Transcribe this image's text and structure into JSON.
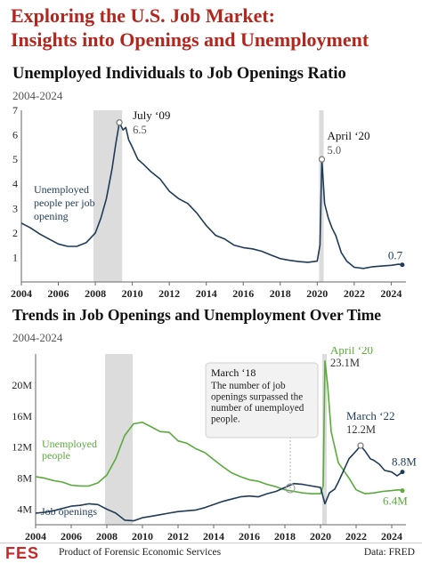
{
  "header": {
    "title_line1": "Exploring the U.S. Job Market:",
    "title_line2": "Insights into Openings and Unemployment"
  },
  "footer": {
    "logo_text": "FES",
    "org_text": "Product of Forensic Economic Services",
    "source_text": "Data: FRED"
  },
  "colors": {
    "title_red": "#b3261e",
    "navy": "#1f3b57",
    "green": "#5aaa3c",
    "recession_gray": "#dcdcdc"
  },
  "chart_data": [
    {
      "type": "line",
      "title": "Unemployed Individuals to Job Openings Ratio",
      "subtitle": "2004-2024",
      "xlim": [
        2004,
        2024.8
      ],
      "ylim": [
        0,
        7
      ],
      "xticks": [
        2004,
        2006,
        2008,
        2010,
        2012,
        2014,
        2016,
        2018,
        2020,
        2022,
        2024
      ],
      "yticks": [
        1,
        2,
        3,
        4,
        5,
        6,
        7
      ],
      "recession_bands": [
        [
          2007.9,
          2009.45
        ],
        [
          2020.1,
          2020.35
        ]
      ],
      "series": [
        {
          "name": "Unemployed people per job opening",
          "color": "#1f3b57",
          "x": [
            2004.0,
            2004.5,
            2005.0,
            2005.5,
            2006.0,
            2006.5,
            2007.0,
            2007.5,
            2008.0,
            2008.3,
            2008.6,
            2008.9,
            2009.1,
            2009.3,
            2009.5,
            2009.65,
            2009.8,
            2010.0,
            2010.3,
            2010.6,
            2011.0,
            2011.5,
            2012.0,
            2012.5,
            2013.0,
            2013.5,
            2014.0,
            2014.5,
            2015.0,
            2015.5,
            2016.0,
            2016.5,
            2017.0,
            2017.5,
            2018.0,
            2018.5,
            2019.0,
            2019.5,
            2020.0,
            2020.15,
            2020.25,
            2020.4,
            2020.6,
            2020.8,
            2021.0,
            2021.3,
            2021.6,
            2022.0,
            2022.5,
            2023.0,
            2023.5,
            2024.0,
            2024.4,
            2024.6
          ],
          "y": [
            2.4,
            2.2,
            1.95,
            1.75,
            1.55,
            1.45,
            1.45,
            1.6,
            2.0,
            2.6,
            3.4,
            4.6,
            5.6,
            6.5,
            6.2,
            6.3,
            5.8,
            5.5,
            5.0,
            4.8,
            4.5,
            4.2,
            3.7,
            3.4,
            3.2,
            2.8,
            2.3,
            1.9,
            1.75,
            1.5,
            1.4,
            1.35,
            1.25,
            1.1,
            0.95,
            0.88,
            0.83,
            0.8,
            0.85,
            1.5,
            5.0,
            3.2,
            2.6,
            2.2,
            1.9,
            1.2,
            0.85,
            0.6,
            0.55,
            0.62,
            0.65,
            0.68,
            0.72,
            0.7
          ]
        }
      ],
      "annotations": [
        {
          "label": "July ‘09",
          "value": "6.5",
          "x": 2009.3,
          "y": 6.5
        },
        {
          "label": "April ‘20",
          "value": "5.0",
          "x": 2020.25,
          "y": 5.0
        },
        {
          "label": "",
          "value": "0.7",
          "x": 2024.6,
          "y": 0.7
        }
      ],
      "series_label_lines": [
        "Unemployed",
        "people per job",
        "opening"
      ]
    },
    {
      "type": "line",
      "title": "Trends in Job Openings and Unemployment Over Time",
      "subtitle": "2004-2024",
      "xlim": [
        2004,
        2024.8
      ],
      "ylim": [
        2,
        24
      ],
      "xticks": [
        2004,
        2006,
        2008,
        2010,
        2012,
        2014,
        2016,
        2018,
        2020,
        2022,
        2024
      ],
      "yticks": [
        4,
        8,
        12,
        16,
        20
      ],
      "ytick_labels": [
        "4M",
        "8M",
        "12M",
        "16M",
        "20M"
      ],
      "recession_bands": [
        [
          2007.9,
          2009.45
        ],
        [
          2020.1,
          2020.35
        ]
      ],
      "series": [
        {
          "name": "Unemployed people",
          "color": "#5aaa3c",
          "x": [
            2004.0,
            2004.5,
            2005.0,
            2005.5,
            2006.0,
            2006.5,
            2007.0,
            2007.5,
            2008.0,
            2008.5,
            2009.0,
            2009.5,
            2010.0,
            2010.5,
            2011.0,
            2011.5,
            2012.0,
            2012.5,
            2013.0,
            2013.5,
            2014.0,
            2014.5,
            2015.0,
            2015.5,
            2016.0,
            2016.5,
            2017.0,
            2017.5,
            2018.0,
            2018.5,
            2019.0,
            2019.5,
            2020.0,
            2020.15,
            2020.25,
            2020.4,
            2020.6,
            2020.8,
            2021.0,
            2021.3,
            2021.6,
            2022.0,
            2022.5,
            2023.0,
            2023.5,
            2024.0,
            2024.4,
            2024.6
          ],
          "y": [
            8.2,
            8.0,
            7.7,
            7.5,
            7.1,
            7.0,
            7.0,
            7.4,
            8.4,
            10.5,
            13.5,
            15.0,
            15.2,
            14.6,
            14.0,
            13.9,
            12.8,
            12.5,
            11.8,
            11.3,
            10.4,
            9.5,
            8.7,
            8.2,
            7.8,
            7.6,
            7.2,
            6.9,
            6.5,
            6.3,
            6.1,
            6.0,
            6.0,
            7.0,
            23.1,
            20.0,
            14.0,
            12.0,
            10.0,
            9.0,
            8.0,
            6.5,
            6.0,
            6.1,
            6.3,
            6.4,
            6.5,
            6.4
          ]
        },
        {
          "name": "Job openings",
          "color": "#1f3b57",
          "x": [
            2004.0,
            2004.5,
            2005.0,
            2005.5,
            2006.0,
            2006.5,
            2007.0,
            2007.5,
            2008.0,
            2008.5,
            2009.0,
            2009.5,
            2010.0,
            2010.5,
            2011.0,
            2011.5,
            2012.0,
            2012.5,
            2013.0,
            2013.5,
            2014.0,
            2014.5,
            2015.0,
            2015.5,
            2016.0,
            2016.5,
            2017.0,
            2017.5,
            2018.0,
            2018.5,
            2019.0,
            2019.5,
            2020.0,
            2020.25,
            2020.5,
            2020.8,
            2021.0,
            2021.3,
            2021.6,
            2022.0,
            2022.25,
            2022.5,
            2022.8,
            2023.0,
            2023.3,
            2023.6,
            2024.0,
            2024.3,
            2024.6
          ],
          "y": [
            3.5,
            3.6,
            3.8,
            4.1,
            4.4,
            4.5,
            4.7,
            4.6,
            4.0,
            3.5,
            2.6,
            2.5,
            2.9,
            3.1,
            3.3,
            3.5,
            3.7,
            3.8,
            3.9,
            4.2,
            4.6,
            5.0,
            5.3,
            5.6,
            5.7,
            5.6,
            6.0,
            6.3,
            6.8,
            7.3,
            7.2,
            7.0,
            6.8,
            4.7,
            6.1,
            6.6,
            7.5,
            9.0,
            10.5,
            11.5,
            12.2,
            11.5,
            10.5,
            10.3,
            9.8,
            9.0,
            8.8,
            8.3,
            8.8
          ]
        }
      ],
      "annotations": [
        {
          "label": "April ‘20",
          "value": "23.1M",
          "x": 2020.25,
          "y": 23.1,
          "series": "Unemployed people"
        },
        {
          "label": "March ‘22",
          "value": "12.2M",
          "x": 2022.25,
          "y": 12.2,
          "series": "Job openings"
        },
        {
          "label": "",
          "value": "8.8M",
          "x": 2024.6,
          "y": 8.8,
          "series": "Job openings"
        },
        {
          "label": "",
          "value": "6.4M",
          "x": 2024.6,
          "y": 6.4,
          "series": "Unemployed people"
        }
      ],
      "callout": {
        "title": "March ‘18",
        "lines": [
          "The number of job",
          "openings surpassed the",
          "number of unemployed",
          "people."
        ],
        "x": 2018.3,
        "y": 6.7
      },
      "series_labels": {
        "unemployed_lines": [
          "Unemployed",
          "people"
        ],
        "openings_lines": [
          "Job openings"
        ]
      }
    }
  ]
}
